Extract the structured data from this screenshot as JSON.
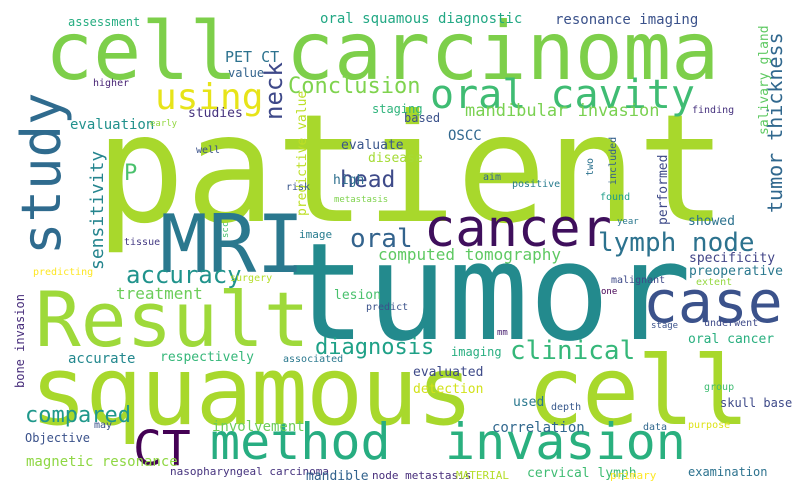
{
  "words": [
    {
      "text": "patient",
      "color": "#a8d82c"
    },
    {
      "text": "tumor",
      "color": "#238a8d"
    },
    {
      "text": "squamous cell",
      "color": "#a8d82c"
    },
    {
      "text": "cell carcinoma",
      "color": "#7dcf4a"
    },
    {
      "text": "Result",
      "color": "#9ed93a"
    },
    {
      "text": "MRI",
      "color": "#2a788e"
    },
    {
      "text": "cancer",
      "color": "#3f0f5c"
    },
    {
      "text": "case",
      "color": "#3b528b"
    },
    {
      "text": "method",
      "color": "#27ad81"
    },
    {
      "text": "invasion",
      "color": "#2ab07f"
    },
    {
      "text": "study",
      "color": "#2f6b8e"
    },
    {
      "text": "CT",
      "color": "#440154"
    },
    {
      "text": "oral cavity",
      "color": "#3fbc73"
    },
    {
      "text": "using",
      "color": "#e7e419"
    },
    {
      "text": "Conclusion",
      "color": "#7fd34e"
    },
    {
      "text": "lymph node",
      "color": "#2c728e"
    },
    {
      "text": "oral",
      "color": "#33638d"
    },
    {
      "text": "head",
      "color": "#3e4a89"
    },
    {
      "text": "neck",
      "color": "#3e4989"
    },
    {
      "text": "P",
      "color": "#4ac16d"
    },
    {
      "text": "accuracy",
      "color": "#20938c"
    },
    {
      "text": "sensitivity",
      "color": "#25858e"
    },
    {
      "text": "computed tomography",
      "color": "#5ec962"
    },
    {
      "text": "clinical",
      "color": "#35b779"
    },
    {
      "text": "diagnosis",
      "color": "#1fa187"
    },
    {
      "text": "compared",
      "color": "#1f988b"
    },
    {
      "text": "treatment",
      "color": "#6ccd5a"
    },
    {
      "text": "tumor thickness",
      "color": "#31688e"
    },
    {
      "text": "mandibular invasion",
      "color": "#7ad151"
    },
    {
      "text": "PET CT",
      "color": "#2c728e"
    },
    {
      "text": "oral squamous diagnostic",
      "color": "#22a884"
    },
    {
      "text": "resonance imaging",
      "color": "#3b528b"
    },
    {
      "text": "salivary gland",
      "color": "#5ec962"
    },
    {
      "text": "assessment",
      "color": "#26ad81"
    },
    {
      "text": "value",
      "color": "#33638d"
    },
    {
      "text": "evaluation",
      "color": "#21918c"
    },
    {
      "text": "studies",
      "color": "#46337e"
    },
    {
      "text": "staging",
      "color": "#2fb47c"
    },
    {
      "text": "based",
      "color": "#3b528b"
    },
    {
      "text": "OSCC",
      "color": "#31688e"
    },
    {
      "text": "predictive value",
      "color": "#bddf26"
    },
    {
      "text": "evaluate",
      "color": "#39568c"
    },
    {
      "text": "disease",
      "color": "#a5db36"
    },
    {
      "text": "high",
      "color": "#2e6f8e"
    },
    {
      "text": "performed",
      "color": "#3e4a89"
    },
    {
      "text": "showed",
      "color": "#2c728e"
    },
    {
      "text": "specificity",
      "color": "#414487"
    },
    {
      "text": "preoperative",
      "color": "#2a788e"
    },
    {
      "text": "extent",
      "color": "#95d840"
    },
    {
      "text": "image",
      "color": "#287c8e"
    },
    {
      "text": "lesion",
      "color": "#4ac16d"
    },
    {
      "text": "accurate",
      "color": "#23888e"
    },
    {
      "text": "respectively",
      "color": "#35b779"
    },
    {
      "text": "imaging",
      "color": "#28ae80"
    },
    {
      "text": "oral cancer",
      "color": "#29af7f"
    },
    {
      "text": "evaluated",
      "color": "#3e4a89"
    },
    {
      "text": "detection",
      "color": "#d2e21b"
    },
    {
      "text": "used",
      "color": "#2a788e"
    },
    {
      "text": "bone invasion",
      "color": "#472d7b"
    },
    {
      "text": "Objective",
      "color": "#3b528b"
    },
    {
      "text": "involvement",
      "color": "#6ccd5a"
    },
    {
      "text": "correlation",
      "color": "#31688e"
    },
    {
      "text": "skull base",
      "color": "#3e4a89"
    },
    {
      "text": "magnetic resonance",
      "color": "#8fd744"
    },
    {
      "text": "nasopharyngeal carcinoma",
      "color": "#46337e"
    },
    {
      "text": "mandible",
      "color": "#33638d"
    },
    {
      "text": "node metastasis",
      "color": "#472d7b"
    },
    {
      "text": "MATERIAL",
      "color": "#b5de2b"
    },
    {
      "text": "cervical lymph",
      "color": "#3fbc73"
    },
    {
      "text": "primary",
      "color": "#fde725"
    },
    {
      "text": "examination",
      "color": "#2c728e"
    },
    {
      "text": "higher",
      "color": "#482475"
    },
    {
      "text": "early",
      "color": "#93d741"
    },
    {
      "text": "well",
      "color": "#3b528b"
    },
    {
      "text": "risk",
      "color": "#39568c"
    },
    {
      "text": "aim",
      "color": "#31688e"
    },
    {
      "text": "positive",
      "color": "#287c8e"
    },
    {
      "text": "two",
      "color": "#2c728e"
    },
    {
      "text": "found",
      "color": "#1f9e89"
    },
    {
      "text": "included",
      "color": "#35608d"
    },
    {
      "text": "finding",
      "color": "#46327e"
    },
    {
      "text": "metastasis",
      "color": "#7fd34e"
    },
    {
      "text": "scc",
      "color": "#48c16e"
    },
    {
      "text": "year",
      "color": "#2a788e"
    },
    {
      "text": "tissue",
      "color": "#443a83"
    },
    {
      "text": "predicting",
      "color": "#fde725"
    },
    {
      "text": "surgery",
      "color": "#b5de2b"
    },
    {
      "text": "malignant",
      "color": "#3e4a89"
    },
    {
      "text": "predict",
      "color": "#3b528b"
    },
    {
      "text": "one",
      "color": "#440154"
    },
    {
      "text": "stage",
      "color": "#3b528b"
    },
    {
      "text": "underwent",
      "color": "#3e4a89"
    },
    {
      "text": "associated",
      "color": "#2a788e"
    },
    {
      "text": "mm",
      "color": "#481f70"
    },
    {
      "text": "group",
      "color": "#3fbc73"
    },
    {
      "text": "depth",
      "color": "#38598c"
    },
    {
      "text": "may",
      "color": "#3b528b"
    },
    {
      "text": "data",
      "color": "#31688e"
    },
    {
      "text": "purpose",
      "color": "#dde318"
    }
  ]
}
